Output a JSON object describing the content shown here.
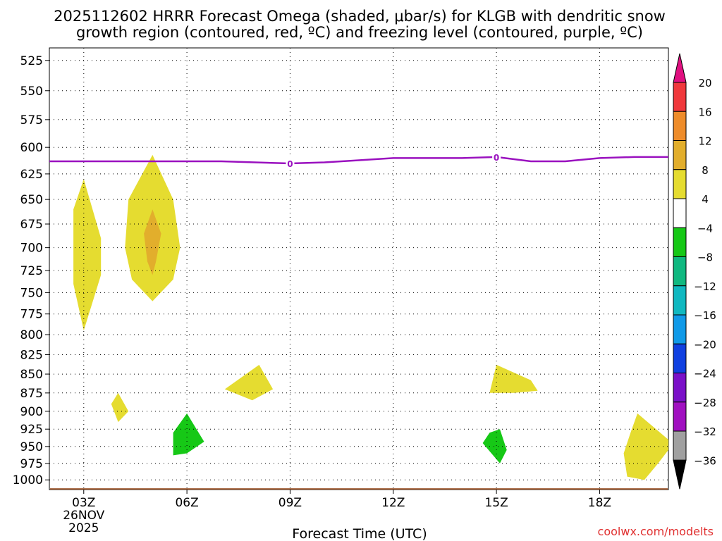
{
  "chart_data": {
    "type": "contour",
    "title_line1": "2025112602 HRRR Forecast Omega (shaded, μbar/s) for KLGB with dendritic snow",
    "title_line2": "growth region (contoured, red, ºC) and freezing level (contoured, purple, ºC)",
    "xlabel": "Forecast Time (UTC)",
    "x_ticks": [
      {
        "hour": 3,
        "label": "03Z",
        "label2": "26NOV",
        "label3": "2025"
      },
      {
        "hour": 6,
        "label": "06Z"
      },
      {
        "hour": 9,
        "label": "09Z"
      },
      {
        "hour": 12,
        "label": "12Z"
      },
      {
        "hour": 15,
        "label": "15Z"
      },
      {
        "hour": 18,
        "label": "18Z"
      }
    ],
    "xlim": [
      2,
      20
    ],
    "y_ticks": [
      525,
      550,
      575,
      600,
      625,
      650,
      675,
      700,
      725,
      750,
      775,
      800,
      825,
      850,
      875,
      900,
      925,
      950,
      975,
      1000
    ],
    "ylim": [
      515,
      1015
    ],
    "y_scale": "log-pressure",
    "freezing_level": {
      "color": "#9a11bf",
      "label": "0",
      "label_hours": [
        9,
        15
      ],
      "points": [
        [
          2,
          613
        ],
        [
          3,
          613
        ],
        [
          5,
          613
        ],
        [
          7,
          613
        ],
        [
          9,
          615
        ],
        [
          10,
          614
        ],
        [
          11,
          612
        ],
        [
          12,
          610
        ],
        [
          13,
          610
        ],
        [
          14,
          610
        ],
        [
          15,
          609
        ],
        [
          16,
          613
        ],
        [
          17,
          613
        ],
        [
          18,
          610
        ],
        [
          19,
          609
        ],
        [
          20,
          609
        ]
      ]
    },
    "omega_regions": [
      {
        "level": 4,
        "color": "#e5dc30",
        "points": [
          [
            3,
            630
          ],
          [
            3.5,
            690
          ],
          [
            3.5,
            730
          ],
          [
            3.0,
            795
          ],
          [
            2.7,
            740
          ],
          [
            2.7,
            660
          ]
        ]
      },
      {
        "level": 4,
        "color": "#e5dc30",
        "points": [
          [
            5,
            607
          ],
          [
            5.6,
            650
          ],
          [
            5.8,
            700
          ],
          [
            5.6,
            735
          ],
          [
            5,
            760
          ],
          [
            4.4,
            735
          ],
          [
            4.2,
            700
          ],
          [
            4.3,
            650
          ]
        ]
      },
      {
        "level": 8,
        "color": "#e2ae2c",
        "points": [
          [
            5,
            660
          ],
          [
            5.25,
            685
          ],
          [
            5.1,
            715
          ],
          [
            5,
            730
          ],
          [
            4.85,
            715
          ],
          [
            4.75,
            685
          ]
        ]
      },
      {
        "level": 4,
        "color": "#e5dc30",
        "points": [
          [
            4,
            875
          ],
          [
            4.3,
            900
          ],
          [
            4,
            915
          ],
          [
            3.8,
            890
          ]
        ]
      },
      {
        "level": 4,
        "color": "#e5dc30",
        "points": [
          [
            7.1,
            870
          ],
          [
            8.1,
            838
          ],
          [
            8.5,
            870
          ],
          [
            7.9,
            885
          ]
        ]
      },
      {
        "level": 4,
        "color": "#e5dc30",
        "points": [
          [
            15,
            838
          ],
          [
            16,
            858
          ],
          [
            16.2,
            872
          ],
          [
            15.5,
            875
          ],
          [
            14.8,
            875
          ]
        ]
      },
      {
        "level": 4,
        "color": "#e5dc30",
        "points": [
          [
            19.1,
            903
          ],
          [
            20,
            940
          ],
          [
            20,
            955
          ],
          [
            19.7,
            975
          ],
          [
            19.3,
            1000
          ],
          [
            18.8,
            995
          ],
          [
            18.7,
            960
          ],
          [
            18.9,
            930
          ]
        ]
      },
      {
        "level": -4,
        "color": "#16c816",
        "points": [
          [
            6,
            903
          ],
          [
            6.5,
            943
          ],
          [
            6,
            960
          ],
          [
            5.6,
            963
          ],
          [
            5.6,
            930
          ]
        ]
      },
      {
        "level": -4,
        "color": "#16c816",
        "points": [
          [
            15.1,
            925
          ],
          [
            15.3,
            955
          ],
          [
            15.1,
            975
          ],
          [
            14.6,
            945
          ],
          [
            14.8,
            930
          ]
        ]
      }
    ],
    "surface": {
      "color": "#9b5227",
      "pressure": 1013
    },
    "colorbar": {
      "labels": [
        "20",
        "16",
        "12",
        "8",
        "4",
        "−4",
        "−8",
        "−12",
        "−16",
        "−20",
        "−24",
        "−28",
        "−32",
        "−36"
      ],
      "colors": [
        "#e01080",
        "#f0383c",
        "#ee8c2a",
        "#e2ae2c",
        "#e5dc30",
        "#ffffff",
        "#16c816",
        "#10b880",
        "#10b8c0",
        "#109ae8",
        "#1040e0",
        "#7a10c8",
        "#a010c0",
        "#a0a0a0",
        "#000000"
      ]
    },
    "credit": "coolwx.com/modelts",
    "credit_color": "#e03030"
  }
}
